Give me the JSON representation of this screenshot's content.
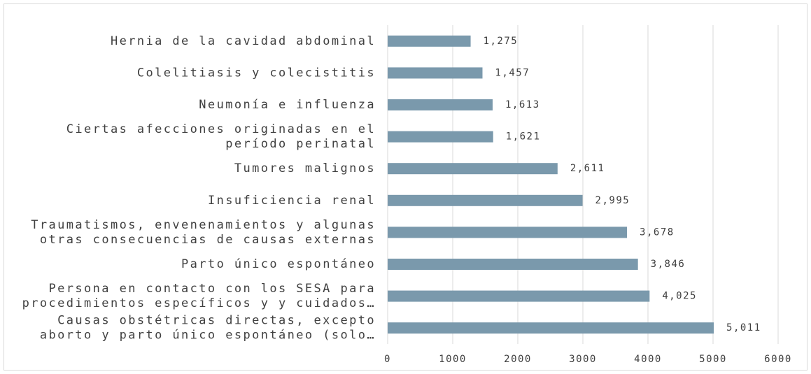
{
  "chart_data": {
    "type": "bar",
    "orientation": "horizontal",
    "categories": [
      "Hernia de la cavidad abdominal",
      "Colelitiasis y colecistitis",
      "Neumonía e influenza",
      "Ciertas afecciones originadas en el\nperíodo perinatal",
      "Tumores malignos",
      "Insuficiencia renal",
      "Traumatismos, envenenamientos y algunas\notras consecuencias de causas externas",
      "Parto único espontáneo",
      "Persona en contacto con los SESA para\nprocedimientos específicos y  y cuidados…",
      "Causas obstétricas directas, excepto\naborto y parto único espontáneo (solo…"
    ],
    "values": [
      1275,
      1457,
      1613,
      1621,
      2611,
      2995,
      3678,
      3846,
      4025,
      5011
    ],
    "value_labels": [
      "1,275",
      "1,457",
      "1,613",
      "1,621",
      "2,611",
      "2,995",
      "3,678",
      "3,846",
      "4,025",
      "5,011"
    ],
    "color": "#7a99ac",
    "xlim": [
      0,
      6000
    ],
    "xticks": [
      0,
      1000,
      2000,
      3000,
      4000,
      5000,
      6000
    ],
    "grid": true
  }
}
